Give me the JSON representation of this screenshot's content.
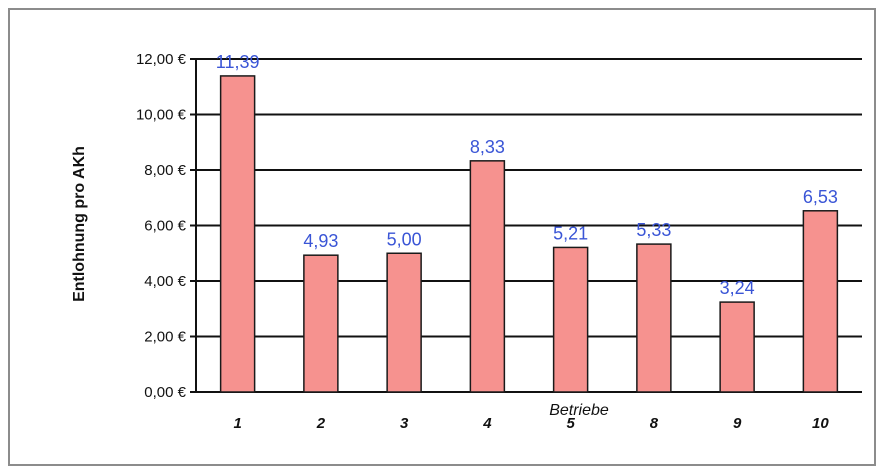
{
  "chart_data": {
    "type": "bar",
    "title": "",
    "xlabel": "Betriebe",
    "ylabel": "Entlohnung pro AKh",
    "categories": [
      "1",
      "2",
      "3",
      "4",
      "5",
      "8",
      "9",
      "10"
    ],
    "values": [
      11.39,
      4.93,
      5.0,
      8.33,
      5.21,
      5.33,
      3.24,
      6.53
    ],
    "data_labels": [
      "11,39",
      "4,93",
      "5,00",
      "8,33",
      "5,21",
      "5,33",
      "3,24",
      "6,53"
    ],
    "yticks": [
      0,
      2,
      4,
      6,
      8,
      10,
      12
    ],
    "ytick_labels": [
      "0,00 €",
      "2,00 €",
      "4,00 €",
      "6,00 €",
      "8,00 €",
      "10,00 €",
      "12,00 €"
    ],
    "ylim": [
      0,
      12
    ],
    "grid": true,
    "legend": "none",
    "colors": {
      "bar": "#f6928f",
      "bar_edge": "#1a1a1a",
      "label": "#3a55d6",
      "grid": "#111111",
      "frame": "#8c8c8c"
    }
  }
}
